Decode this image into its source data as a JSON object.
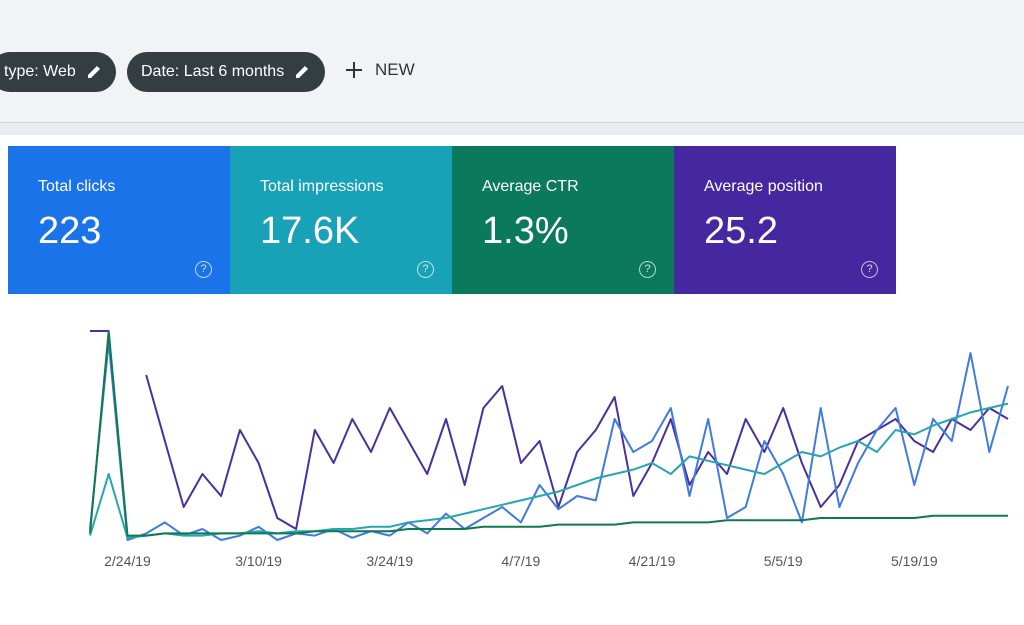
{
  "filters": [
    {
      "label": "type: Web"
    },
    {
      "label": "Date: Last 6 months"
    }
  ],
  "new_button": "NEW",
  "cards": [
    {
      "label": "Total clicks",
      "value": "223",
      "color": "#1a73e8"
    },
    {
      "label": "Total impressions",
      "value": "17.6K",
      "color": "#17a2b8"
    },
    {
      "label": "Average CTR",
      "value": "1.3%",
      "color": "#0b7a5c"
    },
    {
      "label": "Average position",
      "value": "25.2",
      "color": "#4527a0"
    }
  ],
  "chart_data": {
    "type": "line",
    "categories": [
      null,
      null,
      "2/24/19",
      null,
      null,
      null,
      null,
      null,
      null,
      "3/10/19",
      null,
      null,
      null,
      null,
      null,
      null,
      "3/24/19",
      null,
      null,
      null,
      null,
      null,
      null,
      "4/7/19",
      null,
      null,
      null,
      null,
      null,
      null,
      "4/21/19",
      null,
      null,
      null,
      null,
      null,
      null,
      "5/5/19",
      null,
      null,
      null,
      null,
      null,
      null,
      "5/19/19",
      null,
      null,
      null,
      null,
      null
    ],
    "ylim": [
      0,
      100
    ],
    "series": [
      {
        "color": "#4a2fa0",
        "values": [
          95,
          95,
          null,
          75,
          45,
          15,
          30,
          20,
          50,
          35,
          10,
          5,
          50,
          35,
          55,
          40,
          60,
          45,
          30,
          55,
          25,
          60,
          70,
          35,
          45,
          15,
          40,
          50,
          65,
          20,
          35,
          55,
          25,
          40,
          30,
          55,
          40,
          60,
          35,
          15,
          25,
          45,
          50,
          55,
          45,
          40,
          55,
          50,
          60,
          55
        ]
      },
      {
        "color": "#3f7be0",
        "values": [
          5,
          90,
          0,
          3,
          8,
          2,
          5,
          0,
          2,
          6,
          0,
          3,
          2,
          5,
          1,
          4,
          2,
          8,
          3,
          12,
          5,
          10,
          15,
          8,
          25,
          14,
          20,
          18,
          55,
          40,
          45,
          60,
          20,
          55,
          10,
          15,
          45,
          30,
          8,
          60,
          15,
          35,
          50,
          60,
          25,
          55,
          45,
          85,
          40,
          70
        ]
      },
      {
        "color": "#26a6b0",
        "values": [
          2,
          30,
          1,
          2,
          3,
          2,
          2,
          3,
          3,
          4,
          3,
          4,
          4,
          5,
          5,
          6,
          6,
          8,
          9,
          10,
          12,
          14,
          16,
          18,
          20,
          22,
          25,
          28,
          30,
          32,
          35,
          30,
          38,
          36,
          34,
          32,
          30,
          35,
          40,
          38,
          42,
          45,
          40,
          50,
          48,
          52,
          55,
          58,
          60,
          62
        ]
      },
      {
        "color": "#0f7a4e",
        "values": [
          3,
          95,
          2,
          2,
          3,
          3,
          3,
          3,
          3,
          3,
          3,
          3,
          4,
          4,
          4,
          4,
          4,
          5,
          5,
          5,
          5,
          6,
          6,
          6,
          6,
          7,
          7,
          7,
          7,
          8,
          8,
          8,
          8,
          8,
          9,
          9,
          9,
          9,
          9,
          10,
          10,
          10,
          10,
          10,
          10,
          11,
          11,
          11,
          11,
          11
        ]
      }
    ]
  }
}
